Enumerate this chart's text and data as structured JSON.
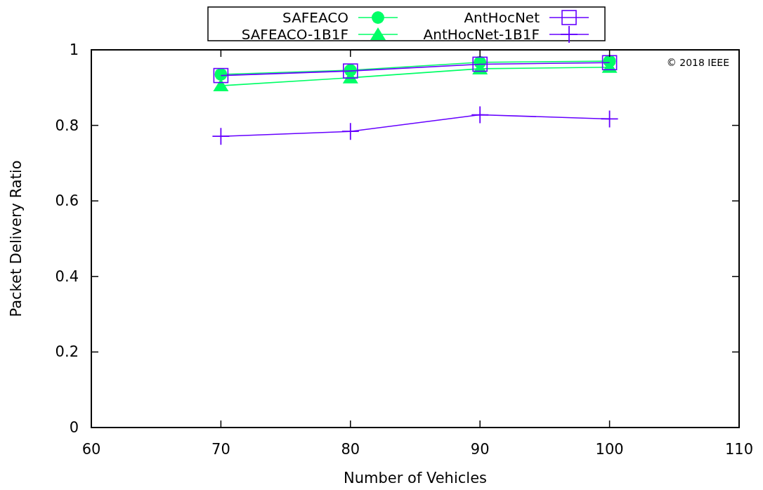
{
  "chart_data": {
    "type": "line",
    "xlabel": "Number of Vehicles",
    "ylabel": "Packet Delivery Ratio",
    "x": [
      70,
      80,
      90,
      100
    ],
    "xlim": [
      60,
      110
    ],
    "xticks": [
      60,
      70,
      80,
      90,
      100,
      110
    ],
    "ylim": [
      0,
      1
    ],
    "yticks": [
      0,
      0.2,
      0.4,
      0.6,
      0.8,
      1
    ],
    "grid": false,
    "legend": "top",
    "annotations": [
      "© 2018 IEEE"
    ],
    "series": [
      {
        "name": "SAFEACO",
        "color": "#00ff66",
        "marker": "circle",
        "values": [
          0.935,
          0.946,
          0.967,
          0.97
        ]
      },
      {
        "name": "SAFEACO-1B1F",
        "color": "#00ff66",
        "marker": "triangle",
        "values": [
          0.905,
          0.926,
          0.95,
          0.954
        ]
      },
      {
        "name": "AntHocNet",
        "color": "#6600ff",
        "marker": "square",
        "values": [
          0.932,
          0.944,
          0.962,
          0.966
        ]
      },
      {
        "name": "AntHocNet-1B1F",
        "color": "#6600ff",
        "marker": "cross",
        "values": [
          0.771,
          0.784,
          0.828,
          0.817
        ]
      }
    ]
  }
}
